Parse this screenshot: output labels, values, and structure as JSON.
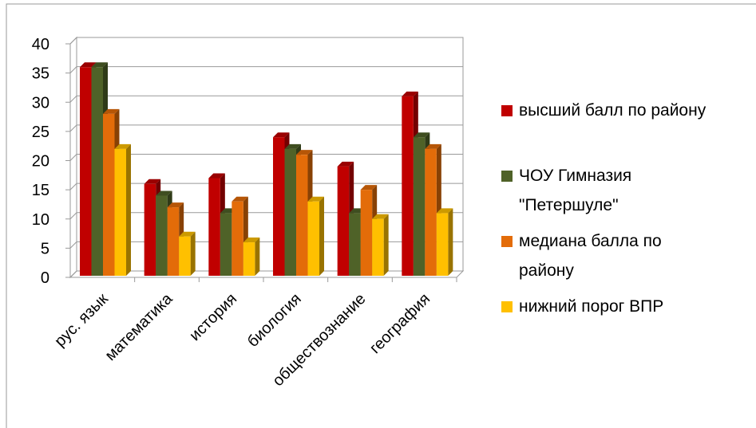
{
  "chart_data": {
    "type": "bar3d",
    "categories": [
      "рус. язык",
      "математика",
      "история",
      "биология",
      "обществознание",
      "география"
    ],
    "series": [
      {
        "name": "высший балл по району",
        "color": "#c00000",
        "values": [
          36,
          16,
          17,
          24,
          19,
          31
        ]
      },
      {
        "name": "ЧОУ Гимназия \"Петершуле\"",
        "color": "#4f6228",
        "values": [
          36,
          14,
          11,
          22,
          11,
          24
        ]
      },
      {
        "name": "медиана балла по району",
        "color": "#e36c09",
        "values": [
          28,
          12,
          13,
          21,
          15,
          22
        ]
      },
      {
        "name": "нижний порог ВПР",
        "color": "#ffc000",
        "values": [
          22,
          7,
          6,
          13,
          10,
          11
        ]
      }
    ],
    "ylim": [
      0,
      40
    ],
    "yticks": [
      0,
      5,
      10,
      15,
      20,
      25,
      30,
      35,
      40
    ],
    "grid": true,
    "legend": "right"
  }
}
